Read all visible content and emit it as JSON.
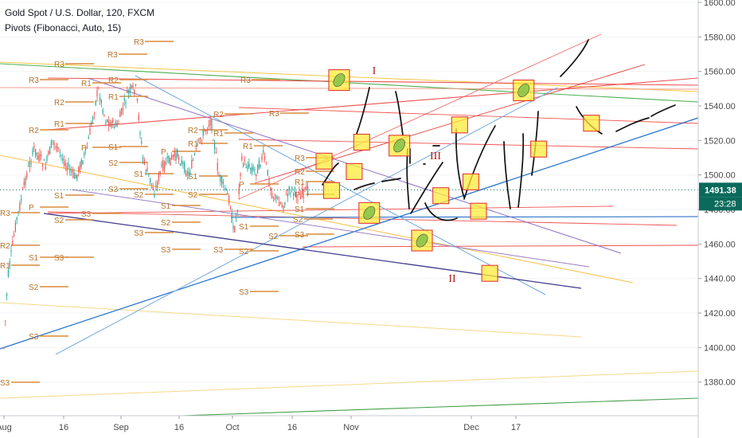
{
  "header": {
    "title": "Gold Spot / U.S. Dollar, 120, FXCM",
    "indicator": "Pivots (Fibonacci, Auto, 15)"
  },
  "colors": {
    "candle_up": "#26a69a",
    "candle_down": "#ef5350",
    "pivot_level": "#d98c3c",
    "pivot_text": "#b8742d",
    "last_price_bg": "#0a6b5c",
    "countdown_bg": "#0a6b5c",
    "zone_fill": "#ffeb3b",
    "zone_stroke": "#e53935",
    "marker_fill": "#8bc34a",
    "wave_label": "#b71c1c",
    "axis_text": "#4a4a4a"
  },
  "price_axis": {
    "ticks": [
      "1600.00",
      "1580.00",
      "1560.00",
      "1540.00",
      "1520.00",
      "1500.00",
      "1480.00",
      "1460.00",
      "1440.00",
      "1420.00",
      "1400.00",
      "1380.00"
    ],
    "last_price": "1491.38",
    "countdown": "23:28"
  },
  "time_axis": {
    "labels": [
      "Aug",
      "16",
      "Sep",
      "16",
      "Oct",
      "16",
      "Nov",
      "Dec",
      "17"
    ]
  },
  "pivot_labels": {
    "r3": "R3",
    "r2": "R2",
    "r1": "R1",
    "p": "P",
    "s1": "S1",
    "s2": "S2",
    "s3": "S3"
  },
  "wave_labels": [
    "I",
    "II",
    "III"
  ],
  "chart_data": {
    "type": "line",
    "title": "Gold Spot / U.S. Dollar, 120, FXCM",
    "symbol": "XAUUSD",
    "timeframe": "120",
    "source": "FXCM",
    "ylim": [
      1362,
      1605
    ],
    "y_ticks": [
      1600,
      1580,
      1560,
      1540,
      1520,
      1500,
      1480,
      1460,
      1440,
      1420,
      1400,
      1380
    ],
    "x_labels": [
      "Aug",
      "16",
      "Sep",
      "16",
      "Oct",
      "16",
      "Nov",
      "Dec",
      "17"
    ],
    "last_price": 1491.38,
    "price_path": [
      {
        "t": "Aug 1",
        "p": 1400
      },
      {
        "t": "Aug 2",
        "p": 1440
      },
      {
        "t": "Aug 4",
        "p": 1470
      },
      {
        "t": "Aug 7",
        "p": 1500
      },
      {
        "t": "Aug 9",
        "p": 1515
      },
      {
        "t": "Aug 12",
        "p": 1505
      },
      {
        "t": "Aug 14",
        "p": 1520
      },
      {
        "t": "Aug 17",
        "p": 1508
      },
      {
        "t": "Aug 20",
        "p": 1498
      },
      {
        "t": "Aug 23",
        "p": 1515
      },
      {
        "t": "Aug 26",
        "p": 1550
      },
      {
        "t": "Aug 28",
        "p": 1532
      },
      {
        "t": "Aug 31",
        "p": 1528
      },
      {
        "t": "Sep 3",
        "p": 1548
      },
      {
        "t": "Sep 5",
        "p": 1550
      },
      {
        "t": "Sep 7",
        "p": 1508
      },
      {
        "t": "Sep 10",
        "p": 1490
      },
      {
        "t": "Sep 12",
        "p": 1505
      },
      {
        "t": "Sep 16",
        "p": 1512
      },
      {
        "t": "Sep 19",
        "p": 1500
      },
      {
        "t": "Sep 22",
        "p": 1520
      },
      {
        "t": "Sep 25",
        "p": 1532
      },
      {
        "t": "Sep 27",
        "p": 1500
      },
      {
        "t": "Sep 30",
        "p": 1485
      },
      {
        "t": "Oct 1",
        "p": 1466
      },
      {
        "t": "Oct 2",
        "p": 1480
      },
      {
        "t": "Oct 3",
        "p": 1508
      },
      {
        "t": "Oct 7",
        "p": 1502
      },
      {
        "t": "Oct 9",
        "p": 1512
      },
      {
        "t": "Oct 11",
        "p": 1490
      },
      {
        "t": "Oct 14",
        "p": 1482
      },
      {
        "t": "Oct 16",
        "p": 1492
      },
      {
        "t": "Oct 18",
        "p": 1488
      },
      {
        "t": "Oct 21",
        "p": 1491
      }
    ],
    "projection_zones": [
      {
        "t": "Oct 25",
        "p": 1508
      },
      {
        "t": "Oct 27",
        "p": 1491
      },
      {
        "t": "Oct 29",
        "p": 1555,
        "marker": true
      },
      {
        "t": "Nov 2",
        "p": 1502
      },
      {
        "t": "Nov 4",
        "p": 1519
      },
      {
        "t": "Nov 6",
        "p": 1478,
        "marker": true
      },
      {
        "t": "Nov 14",
        "p": 1517,
        "marker": true
      },
      {
        "t": "Nov 20",
        "p": 1462,
        "marker": true
      },
      {
        "t": "Nov 25",
        "p": 1488
      },
      {
        "t": "Nov 30",
        "p": 1529
      },
      {
        "t": "Dec 3",
        "p": 1496
      },
      {
        "t": "Dec 5",
        "p": 1479
      },
      {
        "t": "Dec 8",
        "p": 1443
      },
      {
        "t": "Dec 17",
        "p": 1549,
        "marker": true
      },
      {
        "t": "Dec 21",
        "p": 1515
      },
      {
        "t": "Jan 4",
        "p": 1530
      }
    ]
  }
}
